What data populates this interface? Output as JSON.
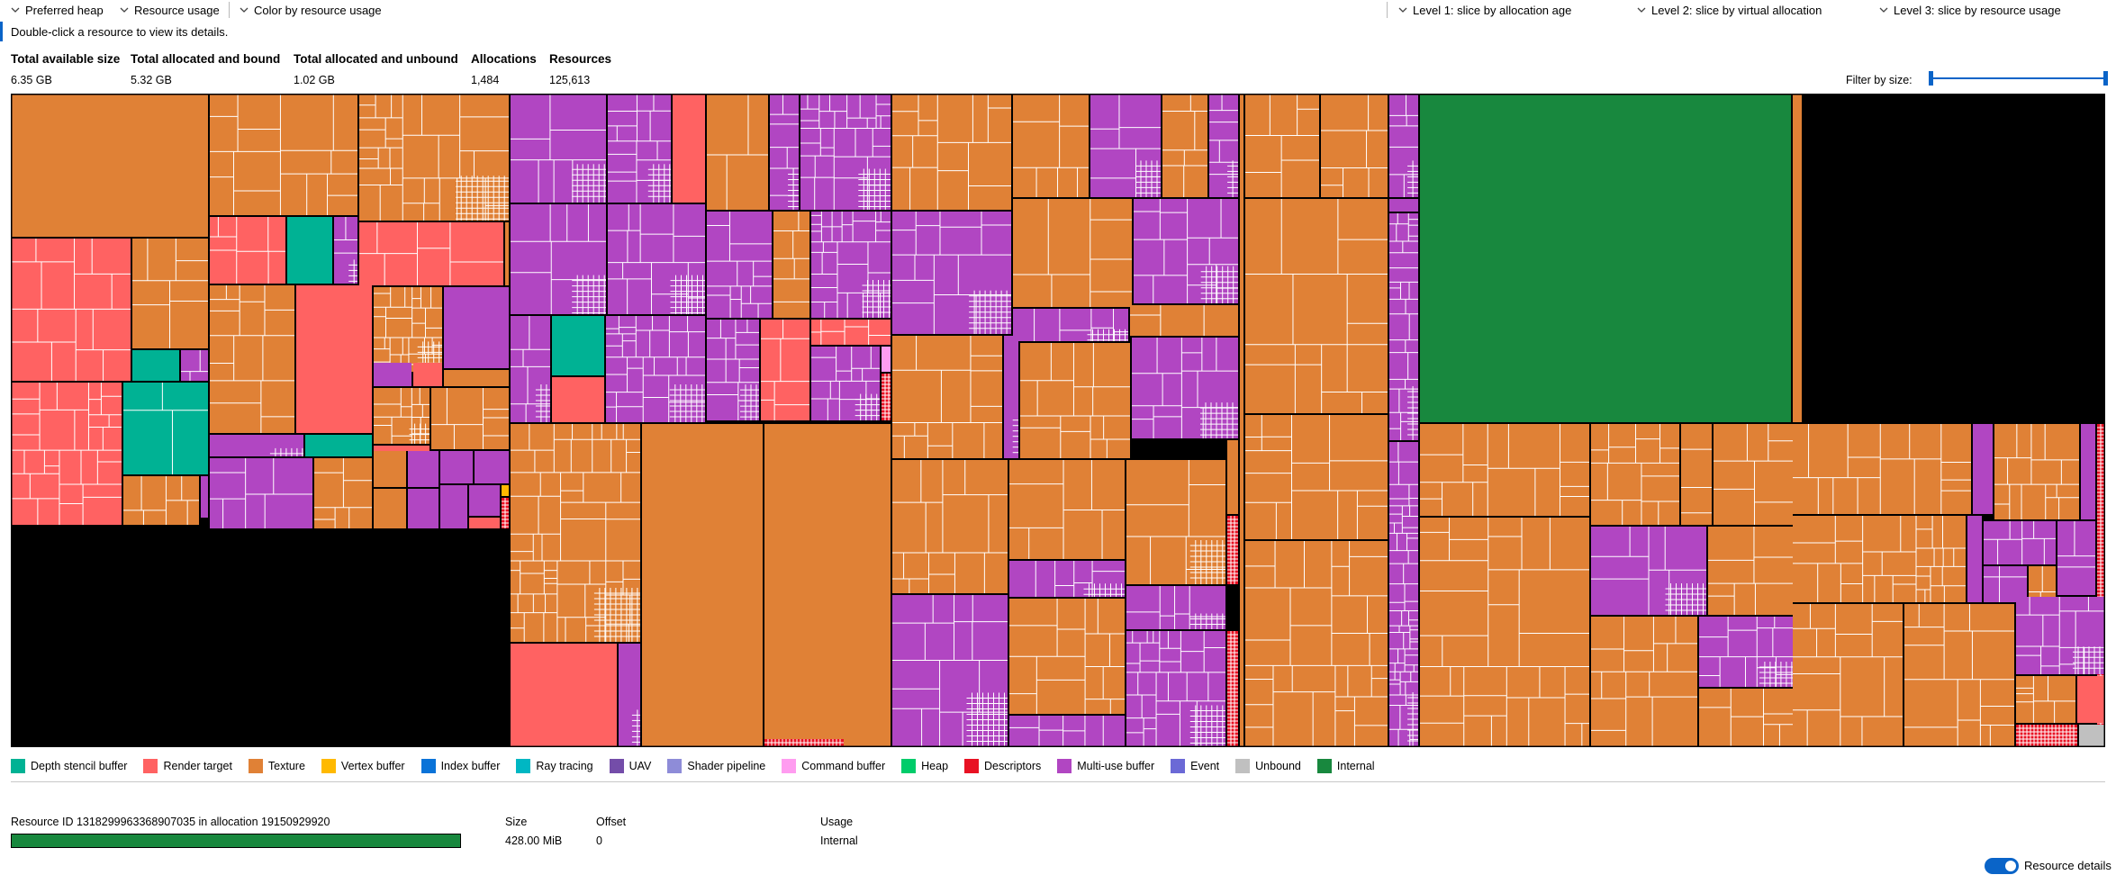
{
  "toolbar": {
    "left": [
      "Preferred heap",
      "Resource usage",
      "Color by resource usage"
    ],
    "right": [
      "Level 1: slice by allocation age",
      "Level 2: slice by virtual allocation",
      "Level 3: slice by resource usage"
    ]
  },
  "hint": "Double-click a resource to view its details.",
  "stats": [
    {
      "label": "Total available size",
      "value": "6.35 GB"
    },
    {
      "label": "Total allocated and bound",
      "value": "5.32 GB"
    },
    {
      "label": "Total allocated and unbound",
      "value": "1.02 GB"
    },
    {
      "label": "Allocations",
      "value": "1,484"
    },
    {
      "label": "Resources",
      "value": "125,613"
    }
  ],
  "filter": {
    "label": "Filter by size:"
  },
  "colors": {
    "depth": "#00b294",
    "rt": "#ff6262",
    "tex": "#e08136",
    "vb": "#ffb900",
    "ib": "#0a73d8",
    "rtx": "#00b7c3",
    "uav": "#744da9",
    "shader": "#8e8cd8",
    "cmd": "#ff9cf0",
    "heap": "#00cc6a",
    "desc": "#e81123",
    "multi": "#b146c2",
    "event": "#6b69d6",
    "unbound": "#c0c0c0",
    "internal": "#18883e"
  },
  "legend": [
    {
      "label": "Depth stencil buffer",
      "color": "#00b294"
    },
    {
      "label": "Render target",
      "color": "#ff6262"
    },
    {
      "label": "Texture",
      "color": "#e08136"
    },
    {
      "label": "Vertex buffer",
      "color": "#ffb900"
    },
    {
      "label": "Index buffer",
      "color": "#0a73d8"
    },
    {
      "label": "Ray tracing",
      "color": "#00b7c3"
    },
    {
      "label": "UAV",
      "color": "#744da9"
    },
    {
      "label": "Shader pipeline",
      "color": "#8e8cd8"
    },
    {
      "label": "Command buffer",
      "color": "#ff9cf0"
    },
    {
      "label": "Heap",
      "color": "#00cc6a"
    },
    {
      "label": "Descriptors",
      "color": "#e81123"
    },
    {
      "label": "Multi-use buffer",
      "color": "#b146c2"
    },
    {
      "label": "Event",
      "color": "#6b69d6"
    },
    {
      "label": "Unbound",
      "color": "#c0c0c0"
    },
    {
      "label": "Internal",
      "color": "#18883e"
    }
  ],
  "details": {
    "resource": "Resource ID 1318299963368907035 in allocation 19150929920",
    "size_label": "Size",
    "size_value": "428.00 MiB",
    "offset_label": "Offset",
    "offset_value": "0",
    "usage_label": "Usage",
    "usage_value": "Internal",
    "toggle_label": "Resource details"
  }
}
